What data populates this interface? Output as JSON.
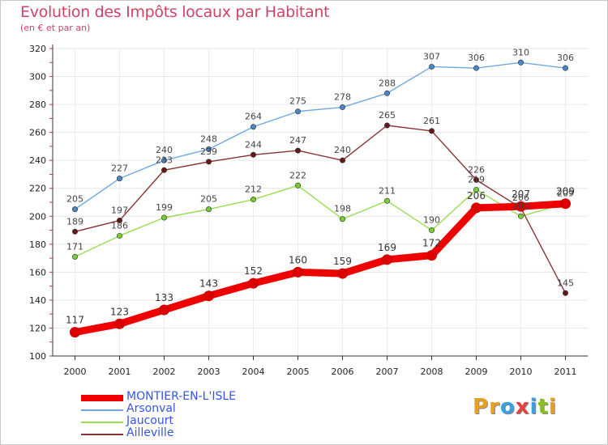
{
  "header": {
    "title": "Evolution des Impôts locaux par Habitant",
    "subtitle": "(en € et par an)"
  },
  "logo": {
    "text": "Proxiti",
    "colors": [
      "#e8a020",
      "#e8a020",
      "#3aa0e0",
      "#e84040",
      "#3aa0e0",
      "#88c020",
      "#e8a020"
    ]
  },
  "chart_data": {
    "type": "line",
    "title": "Evolution des Impôts locaux par Habitant",
    "subtitle": "(en € et par an)",
    "xlabel": "",
    "ylabel": "",
    "ylim": [
      100,
      320
    ],
    "yticks": [
      100,
      120,
      140,
      160,
      180,
      200,
      220,
      240,
      260,
      280,
      300,
      320
    ],
    "x": [
      "2000",
      "2001",
      "2002",
      "2003",
      "2004",
      "2005",
      "2006",
      "2007",
      "2008",
      "2009",
      "2010",
      "2011"
    ],
    "legend_position": "bottom-left",
    "series": [
      {
        "name": "MONTIER-EN-L'ISLE",
        "color": "#ee0000",
        "marker": "#dd0000",
        "emphasis": true,
        "values": [
          117,
          123,
          133,
          143,
          152,
          160,
          159,
          169,
          172,
          206,
          207,
          209
        ]
      },
      {
        "name": "Arsonval",
        "color": "#6fa8dc",
        "marker": "#4a86c8",
        "emphasis": false,
        "values": [
          205,
          227,
          240,
          248,
          264,
          275,
          278,
          288,
          307,
          306,
          310,
          306
        ]
      },
      {
        "name": "Jaucourt",
        "color": "#99dd55",
        "marker": "#77cc33",
        "emphasis": false,
        "values": [
          171,
          186,
          199,
          205,
          212,
          222,
          198,
          211,
          190,
          219,
          200,
          209
        ]
      },
      {
        "name": "Ailleville",
        "color": "#883333",
        "marker": "#661818",
        "emphasis": false,
        "values": [
          189,
          197,
          233,
          239,
          244,
          247,
          240,
          265,
          261,
          226,
          206,
          145
        ]
      }
    ]
  }
}
